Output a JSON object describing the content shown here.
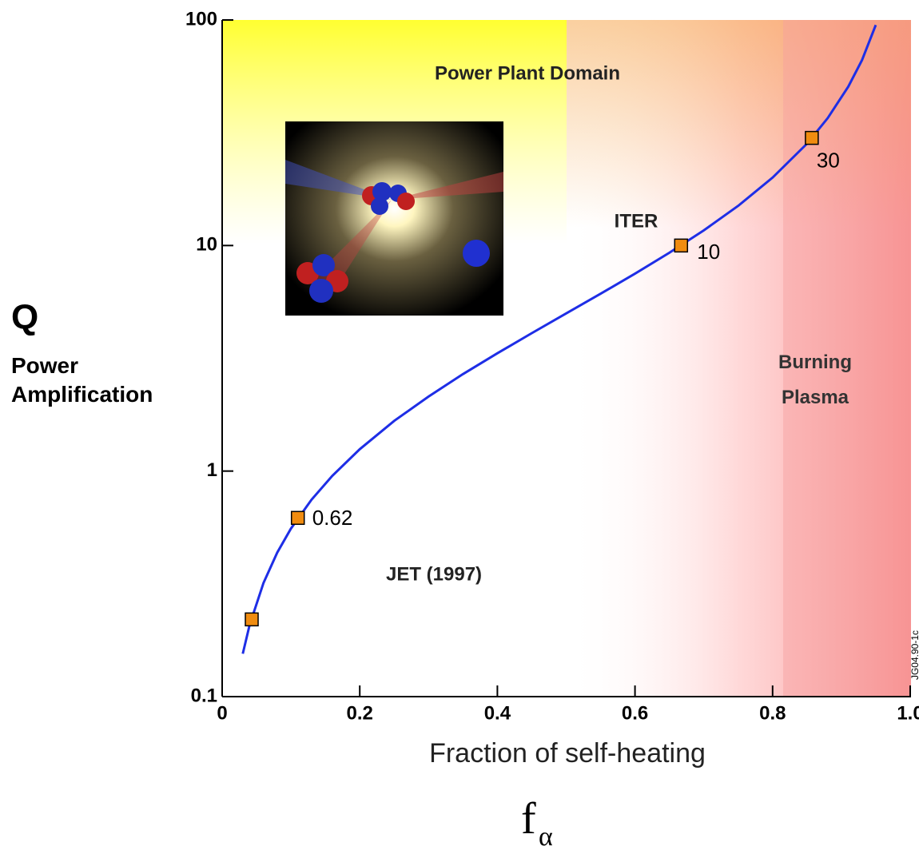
{
  "chart_data": {
    "type": "line",
    "xlabel": "Fraction of self-heating",
    "ylabel": "Q",
    "ylabel_sub": "Power Amplification",
    "symbol": "f",
    "symbol_sub": "α",
    "annotations": [
      "Power Plant Domain",
      "ITER",
      "JET (1997)",
      "Burning Plasma"
    ],
    "credit": "JG04.90-1c",
    "xlim": [
      0,
      1
    ],
    "ylim": [
      0.1,
      100
    ],
    "ylog": true,
    "xticks": [
      0,
      0.2,
      0.4,
      0.6,
      0.8,
      {
        "value": 1,
        "label": "1.0"
      }
    ],
    "yticks": [
      0.1,
      1,
      10,
      100
    ],
    "curve": {
      "color": "#1e2ee6",
      "x": [
        0.03,
        0.04,
        0.06,
        0.08,
        0.1,
        0.13,
        0.16,
        0.2,
        0.25,
        0.3,
        0.35,
        0.4,
        0.45,
        0.5,
        0.55,
        0.6,
        0.65,
        0.7,
        0.75,
        0.8,
        0.85,
        0.88,
        0.91,
        0.93,
        0.95
      ],
      "values": [
        0.155,
        0.208,
        0.319,
        0.435,
        0.556,
        0.747,
        0.952,
        1.25,
        1.67,
        2.14,
        2.69,
        3.33,
        4.09,
        5,
        6.11,
        7.5,
        9.29,
        11.67,
        15,
        20,
        28.3,
        36.7,
        50.6,
        66.4,
        95
      ]
    },
    "points": {
      "color": "#f08c10",
      "x": [
        0.043,
        0.11,
        0.667,
        0.857
      ],
      "values": [
        0.22,
        0.62,
        10,
        30
      ],
      "value_labels": [
        null,
        "0.62",
        "10",
        "30"
      ]
    }
  }
}
